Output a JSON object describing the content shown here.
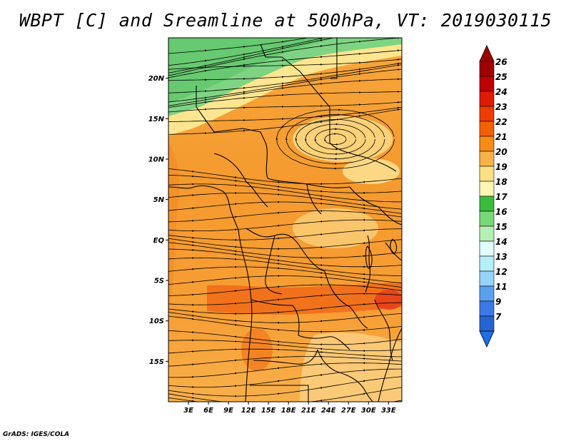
{
  "title": "WBPT [C] and Sreamline at 500hPa, VT: 2019030115",
  "credit": "GrADS: IGES/COLA",
  "map": {
    "lat_range": [
      -20,
      25
    ],
    "lon_range": [
      0,
      35
    ],
    "lat_ticks": [
      {
        "value": 20,
        "label": "20N"
      },
      {
        "value": 15,
        "label": "15N"
      },
      {
        "value": 10,
        "label": "10N"
      },
      {
        "value": 5,
        "label": "5N"
      },
      {
        "value": 0,
        "label": "EQ"
      },
      {
        "value": -5,
        "label": "5S"
      },
      {
        "value": -10,
        "label": "10S"
      },
      {
        "value": -15,
        "label": "15S"
      }
    ],
    "lon_ticks": [
      {
        "value": 3,
        "label": "3E"
      },
      {
        "value": 6,
        "label": "6E"
      },
      {
        "value": 9,
        "label": "9E"
      },
      {
        "value": 12,
        "label": "12E"
      },
      {
        "value": 15,
        "label": "15E"
      },
      {
        "value": 18,
        "label": "18E"
      },
      {
        "value": 21,
        "label": "21E"
      },
      {
        "value": 24,
        "label": "24E"
      },
      {
        "value": 27,
        "label": "27E"
      },
      {
        "value": 30,
        "label": "30E"
      },
      {
        "value": 33,
        "label": "33E"
      }
    ]
  },
  "colorbar": {
    "levels": [
      {
        "label": "26",
        "color": "#a00000"
      },
      {
        "label": "25",
        "color": "#c00000"
      },
      {
        "label": "24",
        "color": "#e01c00"
      },
      {
        "label": "23",
        "color": "#f03c00"
      },
      {
        "label": "22",
        "color": "#f36000"
      },
      {
        "label": "21",
        "color": "#f78c14"
      },
      {
        "label": "20",
        "color": "#f9b248"
      },
      {
        "label": "19",
        "color": "#fde084"
      },
      {
        "label": "18",
        "color": "#fdf5b4"
      },
      {
        "label": "17",
        "color": "#3cbc3c"
      },
      {
        "label": "16",
        "color": "#78d878"
      },
      {
        "label": "15",
        "color": "#b4f0b4"
      },
      {
        "label": "14",
        "color": "#e1ffff"
      },
      {
        "label": "13",
        "color": "#b4f0fa"
      },
      {
        "label": "12",
        "color": "#96d2fa"
      },
      {
        "label": "11",
        "color": "#5aa0f0"
      },
      {
        "label": "9",
        "color": "#3c78e6"
      },
      {
        "label": "7",
        "color": "#2664d2"
      }
    ],
    "top_arrow_color": "#a00000",
    "bottom_arrow_color": "#1e6ee6"
  }
}
